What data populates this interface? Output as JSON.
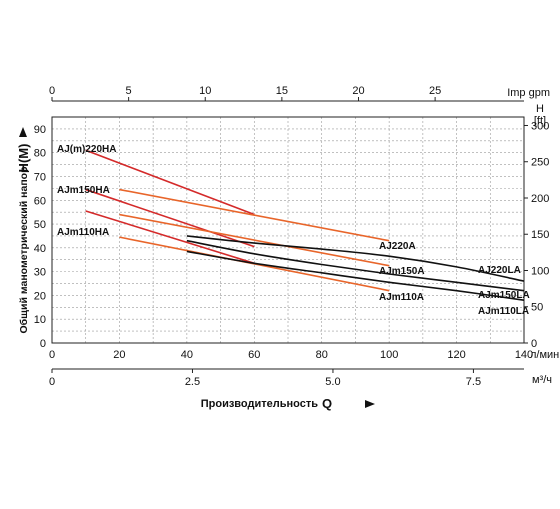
{
  "chart_data": {
    "type": "line",
    "grid": true,
    "axes": {
      "flow_lmin": {
        "unit": "л/мин",
        "range": [
          0,
          140
        ],
        "ticks": [
          0,
          20,
          40,
          60,
          80,
          100,
          120,
          140
        ]
      },
      "flow_m3h": {
        "unit": "м³/ч",
        "range": [
          0,
          8.4
        ],
        "tick_labels": [
          "0",
          "2.5",
          "5.0",
          "7.5"
        ],
        "ticks": [
          0,
          2.5,
          5.0,
          7.5
        ]
      },
      "flow_impgpm": {
        "unit": "Imp gpm",
        "range": [
          0,
          30.8
        ],
        "ticks": [
          0,
          5,
          10,
          15,
          20,
          25
        ]
      },
      "head_m": {
        "unit": "H(M)",
        "range": [
          0,
          95
        ],
        "ticks": [
          0,
          10,
          20,
          30,
          40,
          50,
          60,
          70,
          80,
          90
        ]
      },
      "head_ft": {
        "unit_line1": "H",
        "unit_line2": "[ft]",
        "range": [
          0,
          311.7
        ],
        "ticks": [
          0,
          50,
          100,
          150,
          200,
          250,
          300
        ]
      }
    },
    "xlabel": {
      "text": "Производительность",
      "symbol": "Q"
    },
    "ylabel": {
      "text": "Общий манометрический напор",
      "symbol": "H(M)"
    },
    "series": [
      {
        "name": "AJ(m)220HA",
        "color": "#d42a2a",
        "x": [
          10,
          60
        ],
        "y": [
          81,
          54
        ]
      },
      {
        "name": "AJm150HA",
        "color": "#d42a2a",
        "x": [
          10,
          60
        ],
        "y": [
          64.5,
          40.5
        ]
      },
      {
        "name": "AJm110HA",
        "color": "#d42a2a",
        "x": [
          10,
          60
        ],
        "y": [
          55.5,
          33.5
        ]
      },
      {
        "name": "AJ220A",
        "color": "#e8652a",
        "x": [
          20,
          100
        ],
        "y": [
          64.5,
          43
        ]
      },
      {
        "name": "AJm150A",
        "color": "#e8652a",
        "x": [
          20,
          100
        ],
        "y": [
          54,
          32.5
        ]
      },
      {
        "name": "AJm110A",
        "color": "#e8652a",
        "x": [
          20,
          100
        ],
        "y": [
          44.5,
          22
        ]
      },
      {
        "name": "AJ220LA",
        "color": "#111111",
        "x": [
          40,
          60,
          80,
          100,
          120,
          140
        ],
        "y": [
          45,
          42,
          39.5,
          36.5,
          32,
          26
        ]
      },
      {
        "name": "AJm150LA",
        "color": "#111111",
        "x": [
          40,
          60,
          80,
          100,
          120,
          140
        ],
        "y": [
          43,
          37.5,
          33,
          29,
          25.5,
          22
        ]
      },
      {
        "name": "AJm110LA",
        "color": "#111111",
        "x": [
          40,
          60,
          80,
          100,
          120,
          140
        ],
        "y": [
          38.5,
          33.5,
          29.5,
          25.5,
          22,
          18
        ]
      }
    ]
  }
}
